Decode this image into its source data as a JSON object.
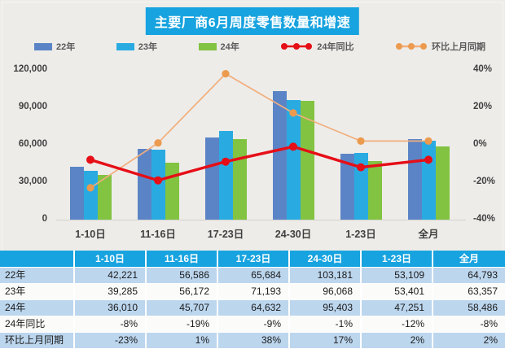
{
  "title": "主要厂商6月周度零售数量和增速",
  "colors": {
    "background": "#EDECE9",
    "title_bg": "#17A3DF",
    "title_text": "#FFFFFF",
    "bar_y22": "#5B84C6",
    "bar_y23": "#29ABE2",
    "bar_y24": "#82C341",
    "line_yoy": "#E60E17",
    "line_yoy_dot": "#E60E17",
    "line_mom": "#F2AE7C",
    "line_mom_dot": "#EC9A4E",
    "axis_text": "#3F3F3F",
    "table_header_bg": "#17A3DF",
    "table_header_text": "#FFFFFF",
    "table_row_alt_bg": "#BCD6EE",
    "table_row_bg": "#FBFBFA",
    "baseline": "#D5D3D0"
  },
  "legend": [
    {
      "key": "y22",
      "label": "22年",
      "type": "bar",
      "color": "#5B84C6"
    },
    {
      "key": "y23",
      "label": "23年",
      "type": "bar",
      "color": "#29ABE2"
    },
    {
      "key": "y24",
      "label": "24年",
      "type": "bar",
      "color": "#82C341"
    },
    {
      "key": "yoy",
      "label": "24年同比",
      "type": "line",
      "color": "#E60E17",
      "dot_color": "#E60E17"
    },
    {
      "key": "mom",
      "label": "环比上月同期",
      "type": "line",
      "color": "#F2AE7C",
      "dot_color": "#EC9A4E"
    }
  ],
  "chart_data": {
    "type": "bar+line combo",
    "categories": [
      "1-10日",
      "11-16日",
      "17-23日",
      "24-30日",
      "1-23日",
      "全月"
    ],
    "bar_series": [
      {
        "key": "y22",
        "name": "22年",
        "axis": "left",
        "values": [
          42221,
          56586,
          65684,
          103181,
          53109,
          64793
        ]
      },
      {
        "key": "y23",
        "name": "23年",
        "axis": "left",
        "values": [
          39285,
          56172,
          71193,
          96068,
          53401,
          63357
        ]
      },
      {
        "key": "y24",
        "name": "24年",
        "axis": "left",
        "values": [
          36010,
          45707,
          64632,
          95403,
          47251,
          58486
        ]
      }
    ],
    "line_series": [
      {
        "key": "yoy",
        "name": "24年同比",
        "axis": "right",
        "unit": "%",
        "values": [
          -8,
          -19,
          -9,
          -1,
          -12,
          -8
        ]
      },
      {
        "key": "mom",
        "name": "环比上月同期",
        "axis": "right",
        "unit": "%",
        "values": [
          -23,
          1,
          38,
          17,
          2,
          2
        ]
      }
    ],
    "left_axis": {
      "min": 0,
      "max": 120000,
      "ticks": [
        "120,000",
        "90,000",
        "60,000",
        "30,000",
        "0"
      ]
    },
    "right_axis": {
      "min": -40,
      "max": 40,
      "ticks": [
        "40%",
        "20%",
        "0%",
        "-20%",
        "-40%"
      ]
    },
    "grid": false,
    "legend_position": "top"
  },
  "table": {
    "header": [
      "",
      "1-10日",
      "11-16日",
      "17-23日",
      "24-30日",
      "1-23日",
      "全月"
    ],
    "rows": [
      {
        "label": "22年",
        "cells": [
          "42,221",
          "56,586",
          "65,684",
          "103,181",
          "53,109",
          "64,793"
        ]
      },
      {
        "label": "23年",
        "cells": [
          "39,285",
          "56,172",
          "71,193",
          "96,068",
          "53,401",
          "63,357"
        ]
      },
      {
        "label": "24年",
        "cells": [
          "36,010",
          "45,707",
          "64,632",
          "95,403",
          "47,251",
          "58,486"
        ]
      },
      {
        "label": "24年同比",
        "cells": [
          "-8%",
          "-19%",
          "-9%",
          "-1%",
          "-12%",
          "-8%"
        ]
      },
      {
        "label": "环比上月同期",
        "cells": [
          "-23%",
          "1%",
          "38%",
          "17%",
          "2%",
          "2%"
        ]
      }
    ]
  }
}
